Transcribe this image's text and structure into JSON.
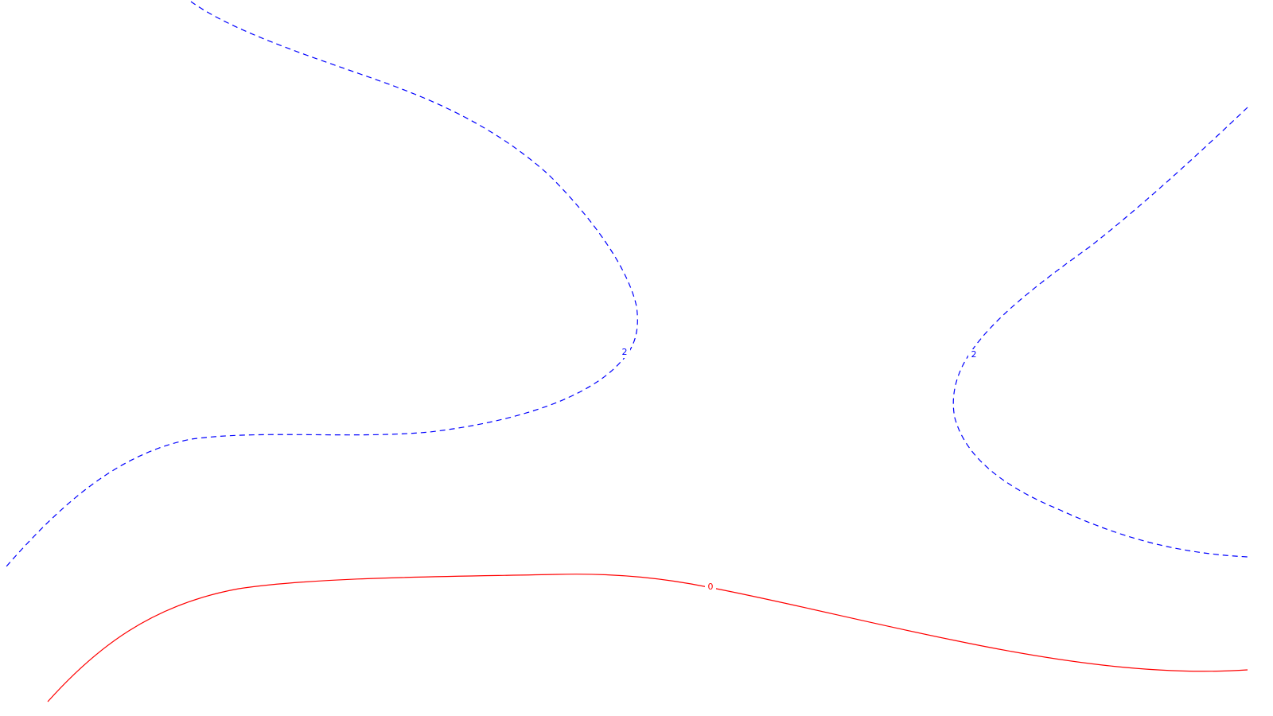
{
  "contours": [
    {
      "name": "contour-upper-left",
      "level": "2",
      "color": "#0000ff",
      "style": "dashed"
    },
    {
      "name": "contour-right",
      "level": "2",
      "color": "#0000ff",
      "style": "dashed"
    },
    {
      "name": "contour-bottom",
      "level": "0",
      "color": "#ff0000",
      "style": "solid"
    }
  ]
}
